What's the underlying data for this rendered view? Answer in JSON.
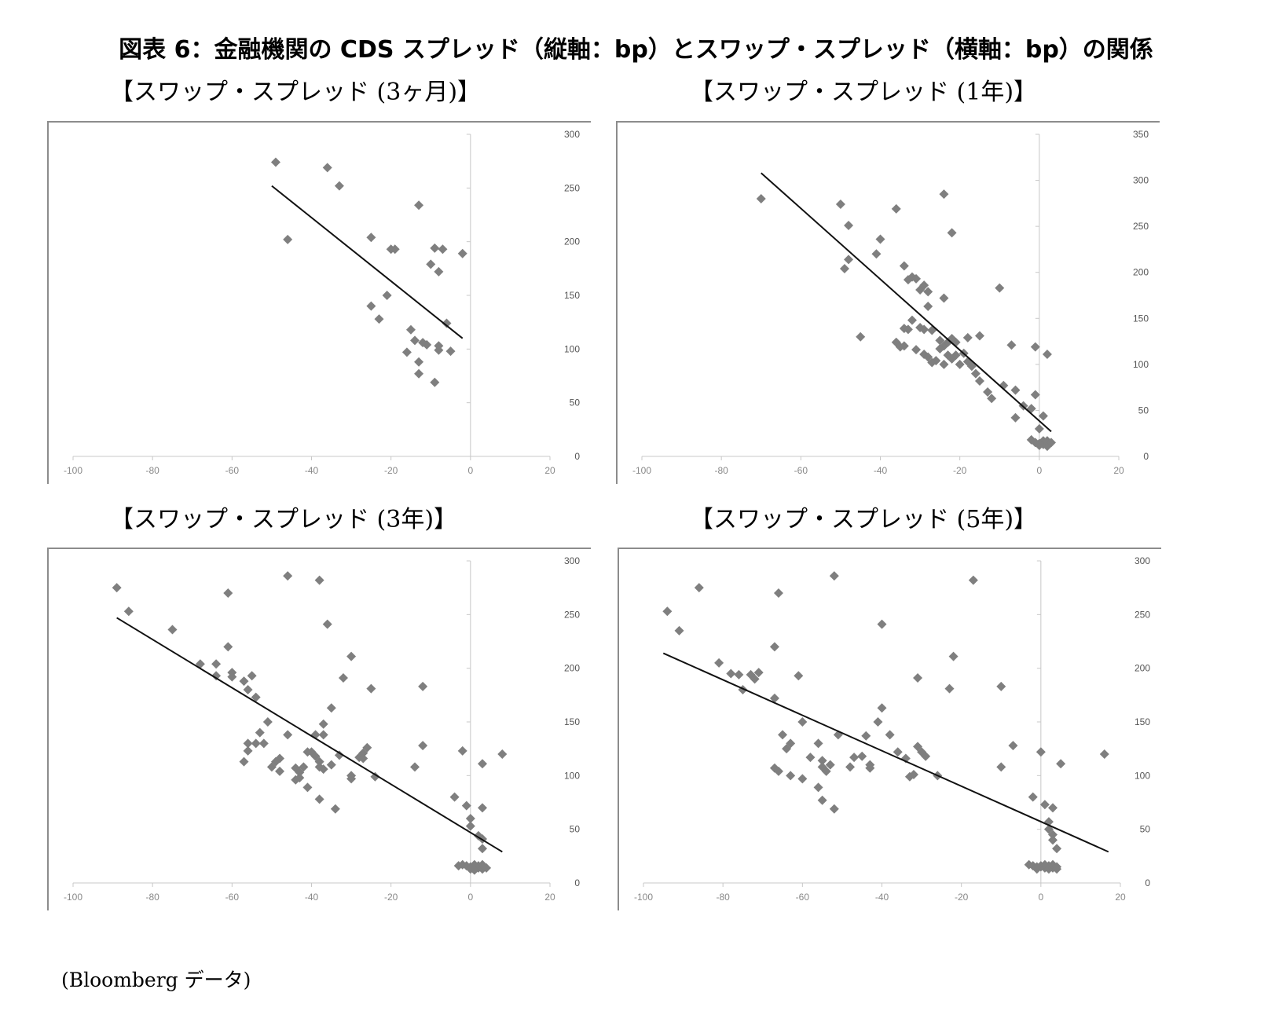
{
  "title": "図表 6：金融機関の CDS スプレッド（縦軸：bp）とスワップ・スプレッド（横軸：bp）の関係",
  "source": "(Bloomberg データ)",
  "chart_data": [
    {
      "type": "scatter",
      "subtitle": "【スワップ・スプレッド (3ヶ月)】",
      "xlim": [
        -100,
        20
      ],
      "ylim": [
        0,
        300
      ],
      "xticks": [
        "-100",
        "-80",
        "-60",
        "-40",
        "-20",
        "0",
        "20"
      ],
      "yticks": [
        "0",
        "50",
        "100",
        "150",
        "200",
        "250",
        "300"
      ],
      "points": [
        [
          -49,
          274
        ],
        [
          -46,
          202
        ],
        [
          -36,
          269
        ],
        [
          -33,
          252
        ],
        [
          -25,
          204
        ],
        [
          -20,
          193
        ],
        [
          -19,
          193
        ],
        [
          -13,
          234
        ],
        [
          -9,
          194
        ],
        [
          -7,
          193
        ],
        [
          -2,
          189
        ],
        [
          -10,
          179
        ],
        [
          -8,
          172
        ],
        [
          -21,
          150
        ],
        [
          -25,
          140
        ],
        [
          -23,
          128
        ],
        [
          -6,
          124
        ],
        [
          -15,
          118
        ],
        [
          -14,
          108
        ],
        [
          -11,
          104
        ],
        [
          -12,
          106
        ],
        [
          -8,
          103
        ],
        [
          -8,
          99
        ],
        [
          -5,
          98
        ],
        [
          -16,
          97
        ],
        [
          -13,
          88
        ],
        [
          -13,
          77
        ],
        [
          -9,
          69
        ]
      ],
      "trendline": {
        "x": [
          -50,
          -2
        ],
        "y": [
          252,
          110
        ]
      }
    },
    {
      "type": "scatter",
      "subtitle": "【スワップ・スプレッド (1年)】",
      "xlim": [
        -100,
        20
      ],
      "ylim": [
        0,
        350
      ],
      "xticks": [
        "-100",
        "-80",
        "-60",
        "-40",
        "-20",
        "0",
        "20"
      ],
      "yticks": [
        "0",
        "50",
        "100",
        "150",
        "200",
        "250",
        "300",
        "350"
      ],
      "points": [
        [
          -70,
          280
        ],
        [
          -50,
          274
        ],
        [
          -48,
          251
        ],
        [
          -40,
          236
        ],
        [
          -36,
          269
        ],
        [
          -24,
          285
        ],
        [
          -22,
          243
        ],
        [
          -41,
          220
        ],
        [
          -48,
          214
        ],
        [
          -49,
          204
        ],
        [
          -34,
          207
        ],
        [
          -33,
          192
        ],
        [
          -32,
          195
        ],
        [
          -31,
          193
        ],
        [
          -30,
          181
        ],
        [
          -29,
          186
        ],
        [
          -28,
          179
        ],
        [
          -24,
          172
        ],
        [
          -28,
          163
        ],
        [
          -10,
          183
        ],
        [
          -32,
          148
        ],
        [
          -33,
          138
        ],
        [
          -34,
          139
        ],
        [
          -30,
          140
        ],
        [
          -29,
          138
        ],
        [
          -27,
          137
        ],
        [
          -25,
          126
        ],
        [
          -24,
          120
        ],
        [
          -23,
          124
        ],
        [
          -22,
          128
        ],
        [
          -21,
          124
        ],
        [
          -18,
          129
        ],
        [
          -15,
          131
        ],
        [
          -7,
          121
        ],
        [
          -1,
          119
        ],
        [
          -45,
          130
        ],
        [
          -36,
          124
        ],
        [
          -35,
          119
        ],
        [
          -34,
          120
        ],
        [
          -31,
          116
        ],
        [
          -29,
          111
        ],
        [
          -28,
          108
        ],
        [
          -26,
          104
        ],
        [
          -25,
          117
        ],
        [
          -23,
          110
        ],
        [
          -22,
          106
        ],
        [
          -21,
          110
        ],
        [
          -20,
          100
        ],
        [
          -19,
          112
        ],
        [
          -18,
          103
        ],
        [
          -17,
          98
        ],
        [
          -24,
          100
        ],
        [
          -27,
          102
        ],
        [
          -16,
          90
        ],
        [
          -15,
          82
        ],
        [
          -13,
          70
        ],
        [
          -12,
          63
        ],
        [
          -9,
          77
        ],
        [
          -6,
          72
        ],
        [
          -4,
          55
        ],
        [
          -2,
          52
        ],
        [
          -1,
          67
        ],
        [
          1,
          44
        ],
        [
          2,
          111
        ],
        [
          -6,
          42
        ],
        [
          0,
          30
        ],
        [
          -2,
          18
        ],
        [
          -1,
          15
        ],
        [
          0,
          12
        ],
        [
          1,
          17
        ],
        [
          1,
          13
        ],
        [
          2,
          11
        ],
        [
          0,
          14
        ],
        [
          2,
          17
        ],
        [
          3,
          15
        ]
      ],
      "trendline": {
        "x": [
          -70,
          3
        ],
        "y": [
          308,
          27
        ]
      }
    },
    {
      "type": "scatter",
      "subtitle": "【スワップ・スプレッド (3年)】",
      "xlim": [
        -100,
        20
      ],
      "ylim": [
        0,
        300
      ],
      "xticks": [
        "-100",
        "-80",
        "-60",
        "-40",
        "-20",
        "0",
        "20"
      ],
      "yticks": [
        "0",
        "50",
        "100",
        "150",
        "200",
        "250",
        "300"
      ],
      "points": [
        [
          -89,
          275
        ],
        [
          -86,
          253
        ],
        [
          -75,
          236
        ],
        [
          -68,
          204
        ],
        [
          -64,
          204
        ],
        [
          -61,
          220
        ],
        [
          -60,
          196
        ],
        [
          -60,
          192
        ],
        [
          -57,
          188
        ],
        [
          -55,
          193
        ],
        [
          -56,
          180
        ],
        [
          -54,
          173
        ],
        [
          -46,
          286
        ],
        [
          -38,
          282
        ],
        [
          -36,
          241
        ],
        [
          -61,
          270
        ],
        [
          -64,
          193
        ],
        [
          -52,
          130
        ],
        [
          -54,
          130
        ],
        [
          -53,
          140
        ],
        [
          -51,
          150
        ],
        [
          -49,
          113
        ],
        [
          -50,
          108
        ],
        [
          -48,
          104
        ],
        [
          -48,
          116
        ],
        [
          -46,
          138
        ],
        [
          -44,
          107
        ],
        [
          -43,
          103
        ],
        [
          -42,
          108
        ],
        [
          -41,
          122
        ],
        [
          -40,
          122
        ],
        [
          -39,
          118
        ],
        [
          -38,
          113
        ],
        [
          -38,
          108
        ],
        [
          -37,
          138
        ],
        [
          -35,
          163
        ],
        [
          -32,
          191
        ],
        [
          -30,
          211
        ],
        [
          -25,
          181
        ],
        [
          -24,
          99
        ],
        [
          -12,
          183
        ],
        [
          -14,
          108
        ],
        [
          -12,
          128
        ],
        [
          -4,
          80
        ],
        [
          -2,
          123
        ],
        [
          -43,
          98
        ],
        [
          -44,
          96
        ],
        [
          -41,
          89
        ],
        [
          -38,
          78
        ],
        [
          -34,
          69
        ],
        [
          -33,
          119
        ],
        [
          -37,
          148
        ],
        [
          -39,
          138
        ],
        [
          -30,
          100
        ],
        [
          -30,
          97
        ],
        [
          -28,
          117
        ],
        [
          -27,
          121
        ],
        [
          -26,
          126
        ],
        [
          -27,
          116
        ],
        [
          -35,
          110
        ],
        [
          -37,
          106
        ],
        [
          -56,
          123
        ],
        [
          -57,
          113
        ],
        [
          -56,
          130
        ],
        [
          -1,
          72
        ],
        [
          0,
          60
        ],
        [
          0,
          53
        ],
        [
          3,
          70
        ],
        [
          2,
          44
        ],
        [
          3,
          41
        ],
        [
          3,
          32
        ],
        [
          3,
          111
        ],
        [
          8,
          120
        ],
        [
          -2,
          17
        ],
        [
          -1,
          16
        ],
        [
          0,
          15
        ],
        [
          1,
          15
        ],
        [
          1,
          17
        ],
        [
          2,
          14
        ],
        [
          2,
          16
        ],
        [
          3,
          13
        ],
        [
          3,
          17
        ],
        [
          4,
          14
        ],
        [
          -3,
          16
        ],
        [
          0,
          13
        ],
        [
          1,
          12
        ]
      ],
      "trendline": {
        "x": [
          -89,
          8
        ],
        "y": [
          247,
          29
        ]
      }
    },
    {
      "type": "scatter",
      "subtitle": "【スワップ・スプレッド (5年)】",
      "xlim": [
        -100,
        20
      ],
      "ylim": [
        0,
        300
      ],
      "xticks": [
        "-100",
        "-80",
        "-60",
        "-40",
        "-20",
        "0",
        "20"
      ],
      "yticks": [
        "0",
        "50",
        "100",
        "150",
        "200",
        "250",
        "300"
      ],
      "points": [
        [
          -94,
          253
        ],
        [
          -91,
          235
        ],
        [
          -86,
          275
        ],
        [
          -81,
          205
        ],
        [
          -78,
          195
        ],
        [
          -76,
          194
        ],
        [
          -75,
          180
        ],
        [
          -73,
          194
        ],
        [
          -71,
          196
        ],
        [
          -72,
          190
        ],
        [
          -66,
          270
        ],
        [
          -67,
          220
        ],
        [
          -52,
          286
        ],
        [
          -40,
          241
        ],
        [
          -17,
          282
        ],
        [
          -61,
          193
        ],
        [
          -67,
          172
        ],
        [
          -60,
          150
        ],
        [
          -65,
          138
        ],
        [
          -63,
          130
        ],
        [
          -64,
          125
        ],
        [
          -67,
          107
        ],
        [
          -66,
          104
        ],
        [
          -63,
          100
        ],
        [
          -60,
          97
        ],
        [
          -58,
          117
        ],
        [
          -56,
          130
        ],
        [
          -55,
          114
        ],
        [
          -55,
          108
        ],
        [
          -54,
          104
        ],
        [
          -53,
          110
        ],
        [
          -56,
          89
        ],
        [
          -55,
          77
        ],
        [
          -52,
          69
        ],
        [
          -51,
          138
        ],
        [
          -48,
          108
        ],
        [
          -47,
          117
        ],
        [
          -44,
          137
        ],
        [
          -45,
          118
        ],
        [
          -43,
          110
        ],
        [
          -43,
          107
        ],
        [
          -41,
          150
        ],
        [
          -40,
          163
        ],
        [
          -38,
          138
        ],
        [
          -36,
          122
        ],
        [
          -34,
          116
        ],
        [
          -33,
          99
        ],
        [
          -32,
          101
        ],
        [
          -31,
          127
        ],
        [
          -30,
          122
        ],
        [
          -29,
          118
        ],
        [
          -26,
          100
        ],
        [
          -31,
          191
        ],
        [
          -22,
          211
        ],
        [
          -23,
          181
        ],
        [
          -10,
          183
        ],
        [
          -10,
          108
        ],
        [
          -7,
          128
        ],
        [
          -2,
          80
        ],
        [
          0,
          122
        ],
        [
          1,
          73
        ],
        [
          2,
          57
        ],
        [
          2,
          50
        ],
        [
          3,
          70
        ],
        [
          3,
          45
        ],
        [
          3,
          40
        ],
        [
          4,
          32
        ],
        [
          5,
          111
        ],
        [
          16,
          120
        ],
        [
          -3,
          17
        ],
        [
          -2,
          16
        ],
        [
          -1,
          15
        ],
        [
          0,
          15
        ],
        [
          0,
          16
        ],
        [
          1,
          14
        ],
        [
          1,
          17
        ],
        [
          2,
          13
        ],
        [
          2,
          16
        ],
        [
          3,
          14
        ],
        [
          3,
          17
        ],
        [
          4,
          13
        ],
        [
          4,
          15
        ],
        [
          -1,
          13
        ]
      ],
      "trendline": {
        "x": [
          -95,
          17
        ],
        "y": [
          214,
          29
        ]
      }
    }
  ]
}
